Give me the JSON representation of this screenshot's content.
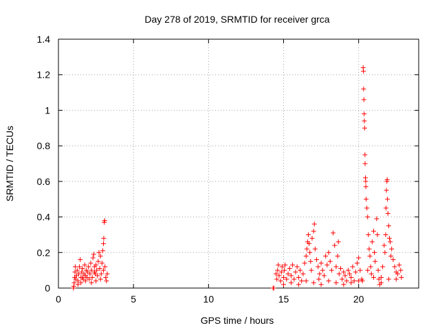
{
  "chart_data": {
    "type": "scatter",
    "title": "Day 278 of 2019, SRMTID for receiver grca",
    "xlabel": "GPS time / hours",
    "ylabel": "SRMTID / TECUs",
    "xlim": [
      0,
      24
    ],
    "ylim": [
      0,
      1.4
    ],
    "xticks": [
      0,
      5,
      10,
      15,
      20
    ],
    "yticks": [
      0,
      0.2,
      0.4,
      0.6,
      0.8,
      1,
      1.2,
      1.4
    ],
    "xtick_labels": [
      "0",
      "5",
      "10",
      "15",
      "20"
    ],
    "ytick_labels": [
      "0",
      "0.2",
      "0.4",
      "0.6",
      "0.8",
      "1",
      "1.2",
      "1.4"
    ],
    "grid": true,
    "marker": "+",
    "colors": {
      "series": "#ff0000",
      "grid": "#a0a0a0",
      "axes": "#000000"
    },
    "series": [
      {
        "points": [
          [
            1.0,
            0.0
          ],
          [
            1.02,
            0.01
          ],
          [
            1.05,
            0.03
          ],
          [
            1.08,
            0.06
          ],
          [
            1.1,
            0.09
          ],
          [
            1.12,
            0.12
          ],
          [
            1.15,
            0.05
          ],
          [
            1.2,
            0.07
          ],
          [
            1.25,
            0.1
          ],
          [
            1.3,
            0.04
          ],
          [
            1.35,
            0.08
          ],
          [
            1.4,
            0.12
          ],
          [
            1.45,
            0.16
          ],
          [
            1.5,
            0.06
          ],
          [
            1.55,
            0.09
          ],
          [
            1.6,
            0.11
          ],
          [
            1.65,
            0.05
          ],
          [
            1.7,
            0.08
          ],
          [
            1.75,
            0.13
          ],
          [
            1.8,
            0.07
          ],
          [
            1.85,
            0.1
          ],
          [
            1.9,
            0.06
          ],
          [
            1.95,
            0.09
          ],
          [
            2.0,
            0.12
          ],
          [
            2.05,
            0.05
          ],
          [
            2.1,
            0.08
          ],
          [
            2.15,
            0.14
          ],
          [
            2.2,
            0.1
          ],
          [
            2.25,
            0.06
          ],
          [
            2.3,
            0.17
          ],
          [
            2.35,
            0.19
          ],
          [
            2.4,
            0.12
          ],
          [
            2.45,
            0.08
          ],
          [
            2.5,
            0.13
          ],
          [
            2.55,
            0.1
          ],
          [
            2.6,
            0.07
          ],
          [
            2.65,
            0.15
          ],
          [
            2.7,
            0.2
          ],
          [
            2.75,
            0.11
          ],
          [
            2.8,
            0.18
          ],
          [
            2.85,
            0.08
          ],
          [
            2.9,
            0.14
          ],
          [
            2.95,
            0.21
          ],
          [
            3.0,
            0.25
          ],
          [
            3.02,
            0.28
          ],
          [
            3.05,
            0.37
          ],
          [
            3.08,
            0.38
          ],
          [
            3.1,
            0.12
          ],
          [
            3.15,
            0.06
          ],
          [
            3.2,
            0.04
          ],
          [
            3.25,
            0.08
          ],
          [
            3.0,
            0.1
          ],
          [
            2.8,
            0.05
          ],
          [
            2.5,
            0.04
          ],
          [
            2.2,
            0.03
          ],
          [
            1.8,
            0.04
          ],
          [
            1.5,
            0.03
          ],
          [
            1.3,
            0.02
          ],
          [
            1.6,
            0.06
          ],
          [
            2.4,
            0.09
          ],
          [
            14.3,
            0.0
          ],
          [
            14.35,
            0.0
          ],
          [
            14.5,
            0.08
          ],
          [
            14.55,
            0.05
          ],
          [
            14.6,
            0.1
          ],
          [
            14.65,
            0.13
          ],
          [
            14.7,
            0.07
          ],
          [
            14.8,
            0.04
          ],
          [
            14.85,
            0.09
          ],
          [
            14.9,
            0.12
          ],
          [
            15.0,
            0.06
          ],
          [
            15.05,
            0.1
          ],
          [
            15.1,
            0.13
          ],
          [
            15.2,
            0.05
          ],
          [
            15.3,
            0.08
          ],
          [
            15.4,
            0.11
          ],
          [
            15.5,
            0.07
          ],
          [
            15.6,
            0.13
          ],
          [
            15.7,
            0.05
          ],
          [
            15.8,
            0.09
          ],
          [
            15.9,
            0.12
          ],
          [
            16.0,
            0.06
          ],
          [
            16.1,
            0.1
          ],
          [
            16.2,
            0.04
          ],
          [
            16.3,
            0.08
          ],
          [
            16.4,
            0.14
          ],
          [
            16.5,
            0.18
          ],
          [
            16.55,
            0.22
          ],
          [
            16.6,
            0.26
          ],
          [
            16.65,
            0.3
          ],
          [
            16.7,
            0.25
          ],
          [
            16.75,
            0.2
          ],
          [
            16.8,
            0.15
          ],
          [
            16.85,
            0.1
          ],
          [
            16.9,
            0.28
          ],
          [
            17.0,
            0.32
          ],
          [
            17.05,
            0.36
          ],
          [
            17.1,
            0.22
          ],
          [
            17.2,
            0.16
          ],
          [
            17.3,
            0.12
          ],
          [
            17.35,
            0.05
          ],
          [
            17.4,
            0.08
          ],
          [
            17.5,
            0.14
          ],
          [
            17.6,
            0.1
          ],
          [
            17.7,
            0.07
          ],
          [
            17.8,
            0.18
          ],
          [
            17.9,
            0.13
          ],
          [
            18.0,
            0.2
          ],
          [
            18.1,
            0.15
          ],
          [
            18.2,
            0.1
          ],
          [
            18.3,
            0.31
          ],
          [
            18.4,
            0.24
          ],
          [
            18.5,
            0.12
          ],
          [
            18.6,
            0.18
          ],
          [
            18.65,
            0.26
          ],
          [
            18.7,
            0.08
          ],
          [
            18.8,
            0.11
          ],
          [
            18.9,
            0.05
          ],
          [
            19.0,
            0.09
          ],
          [
            19.1,
            0.07
          ],
          [
            19.2,
            0.04
          ],
          [
            19.3,
            0.1
          ],
          [
            19.4,
            0.08
          ],
          [
            19.5,
            0.06
          ],
          [
            19.6,
            0.12
          ],
          [
            19.7,
            0.04
          ],
          [
            19.8,
            0.09
          ],
          [
            19.9,
            0.14
          ],
          [
            20.0,
            0.17
          ],
          [
            20.1,
            0.1
          ],
          [
            20.2,
            0.05
          ],
          [
            20.25,
            0.04
          ],
          [
            20.3,
            1.24
          ],
          [
            20.32,
            1.22
          ],
          [
            20.33,
            1.12
          ],
          [
            20.35,
            1.06
          ],
          [
            20.37,
            0.98
          ],
          [
            20.38,
            0.94
          ],
          [
            20.4,
            0.9
          ],
          [
            20.42,
            0.75
          ],
          [
            20.43,
            0.7
          ],
          [
            20.45,
            0.62
          ],
          [
            20.47,
            0.6
          ],
          [
            20.48,
            0.57
          ],
          [
            20.5,
            0.5
          ],
          [
            20.55,
            0.45
          ],
          [
            20.6,
            0.4
          ],
          [
            20.65,
            0.3
          ],
          [
            20.7,
            0.22
          ],
          [
            20.75,
            0.18
          ],
          [
            20.8,
            0.12
          ],
          [
            20.85,
            0.08
          ],
          [
            20.9,
            0.26
          ],
          [
            21.0,
            0.32
          ],
          [
            21.05,
            0.2
          ],
          [
            21.1,
            0.15
          ],
          [
            21.2,
            0.39
          ],
          [
            21.25,
            0.3
          ],
          [
            21.3,
            0.1
          ],
          [
            21.35,
            0.05
          ],
          [
            21.4,
            0.02
          ],
          [
            21.5,
            0.06
          ],
          [
            21.6,
            0.12
          ],
          [
            21.7,
            0.24
          ],
          [
            21.75,
            0.2
          ],
          [
            21.8,
            0.3
          ],
          [
            21.82,
            0.45
          ],
          [
            21.85,
            0.55
          ],
          [
            21.88,
            0.6
          ],
          [
            21.9,
            0.61
          ],
          [
            21.92,
            0.5
          ],
          [
            21.95,
            0.42
          ],
          [
            22.0,
            0.35
          ],
          [
            22.05,
            0.28
          ],
          [
            22.1,
            0.26
          ],
          [
            22.15,
            0.18
          ],
          [
            22.2,
            0.22
          ],
          [
            22.3,
            0.16
          ],
          [
            22.4,
            0.12
          ],
          [
            22.5,
            0.05
          ],
          [
            22.6,
            0.08
          ],
          [
            22.7,
            0.13
          ],
          [
            22.8,
            0.1
          ],
          [
            22.85,
            0.06
          ],
          [
            15.0,
            0.02
          ],
          [
            15.5,
            0.03
          ],
          [
            16.0,
            0.02
          ],
          [
            16.5,
            0.04
          ],
          [
            17.0,
            0.03
          ],
          [
            17.5,
            0.02
          ],
          [
            18.0,
            0.04
          ],
          [
            18.5,
            0.03
          ],
          [
            19.0,
            0.02
          ],
          [
            19.5,
            0.03
          ],
          [
            20.0,
            0.04
          ],
          [
            20.6,
            0.1
          ],
          [
            21.0,
            0.06
          ],
          [
            21.5,
            0.03
          ],
          [
            22.0,
            0.05
          ],
          [
            22.5,
            0.09
          ]
        ]
      }
    ]
  }
}
